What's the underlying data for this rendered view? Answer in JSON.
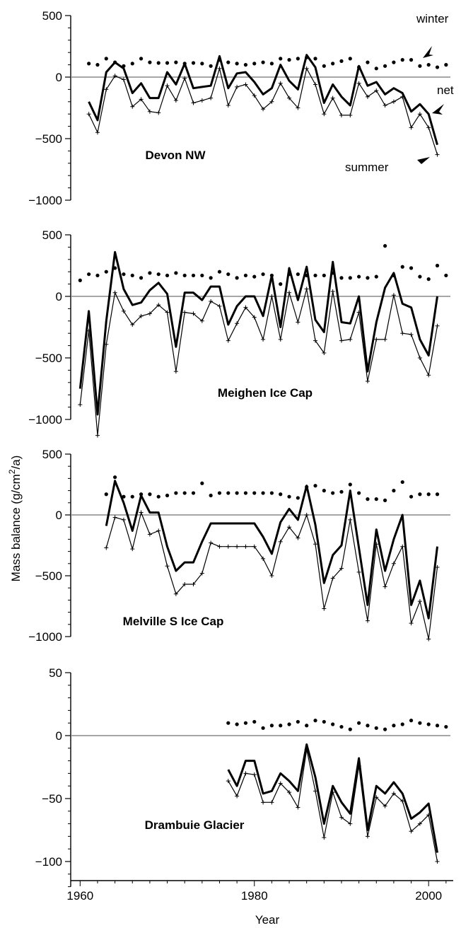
{
  "chart_data": [
    {
      "type": "line",
      "title": "Devon NW",
      "ylim": [
        -1000,
        500
      ],
      "yticks": [
        500,
        0,
        -500,
        -1000
      ],
      "ytick_labels": [
        "500",
        "0",
        "−500",
        "−1000"
      ],
      "annotations": [
        {
          "text": "winter"
        },
        {
          "text": "net"
        },
        {
          "text": "summer"
        }
      ],
      "series": [
        {
          "name": "winter",
          "x": [
            1961,
            1962,
            1963,
            1964,
            1965,
            1966,
            1967,
            1968,
            1969,
            1970,
            1971,
            1972,
            1973,
            1974,
            1975,
            1976,
            1977,
            1978,
            1979,
            1980,
            1981,
            1982,
            1983,
            1984,
            1985,
            1986,
            1987,
            1988,
            1989,
            1990,
            1991,
            1992,
            1993,
            1994,
            1995,
            1996,
            1997,
            1998,
            1999,
            2000,
            2001,
            2002
          ],
          "values": [
            110,
            100,
            150,
            120,
            90,
            110,
            150,
            120,
            115,
            115,
            120,
            110,
            115,
            110,
            90,
            140,
            120,
            110,
            100,
            110,
            120,
            110,
            150,
            140,
            150,
            160,
            150,
            90,
            110,
            130,
            150,
            80,
            120,
            70,
            90,
            120,
            140,
            140,
            90,
            100,
            80,
            100
          ]
        },
        {
          "name": "net",
          "x": [
            1961,
            1962,
            1963,
            1964,
            1965,
            1966,
            1967,
            1968,
            1969,
            1970,
            1971,
            1972,
            1973,
            1974,
            1975,
            1976,
            1977,
            1978,
            1979,
            1980,
            1981,
            1982,
            1983,
            1984,
            1985,
            1986,
            1987,
            1988,
            1989,
            1990,
            1991,
            1992,
            1993,
            1994,
            1995,
            1996,
            1997,
            1998,
            1999,
            2000,
            2001
          ],
          "values": [
            -200,
            -350,
            40,
            120,
            70,
            -130,
            -50,
            -170,
            -170,
            40,
            -60,
            110,
            -90,
            -80,
            -70,
            170,
            -90,
            30,
            40,
            -40,
            -140,
            -90,
            100,
            -30,
            -100,
            180,
            80,
            -210,
            -60,
            -160,
            -230,
            90,
            -70,
            -40,
            -140,
            -90,
            -130,
            -280,
            -220,
            -300,
            -550
          ]
        },
        {
          "name": "summer",
          "x": [
            1961,
            1962,
            1963,
            1964,
            1965,
            1966,
            1967,
            1968,
            1969,
            1970,
            1971,
            1972,
            1973,
            1974,
            1975,
            1976,
            1977,
            1978,
            1979,
            1980,
            1981,
            1982,
            1983,
            1984,
            1985,
            1986,
            1987,
            1988,
            1989,
            1990,
            1991,
            1992,
            1993,
            1994,
            1995,
            1996,
            1997,
            1998,
            1999,
            2000,
            2001
          ],
          "values": [
            -300,
            -450,
            -100,
            10,
            -20,
            -240,
            -180,
            -280,
            -290,
            -70,
            -190,
            -10,
            -210,
            -190,
            -170,
            70,
            -230,
            -80,
            -60,
            -150,
            -260,
            -200,
            -50,
            -170,
            -250,
            70,
            -60,
            -300,
            -170,
            -310,
            -310,
            -50,
            -160,
            -110,
            -230,
            -200,
            -160,
            -410,
            -300,
            -410,
            -630
          ]
        }
      ]
    },
    {
      "type": "line",
      "title": "Meighen Ice Cap",
      "ylim": [
        -1000,
        500
      ],
      "yticks": [
        500,
        0,
        -500,
        -1000
      ],
      "ytick_labels": [
        "500",
        "0",
        "−500",
        "−1000"
      ],
      "series": [
        {
          "name": "winter",
          "x": [
            1960,
            1961,
            1962,
            1963,
            1964,
            1965,
            1966,
            1967,
            1968,
            1969,
            1970,
            1971,
            1972,
            1973,
            1974,
            1975,
            1976,
            1977,
            1978,
            1979,
            1980,
            1981,
            1982,
            1983,
            1984,
            1985,
            1986,
            1987,
            1988,
            1989,
            1990,
            1991,
            1992,
            1993,
            1994,
            1995,
            1996,
            1997,
            1998,
            1999,
            2000,
            2001,
            2002
          ],
          "values": [
            130,
            180,
            170,
            200,
            230,
            180,
            170,
            150,
            190,
            180,
            170,
            190,
            170,
            170,
            170,
            150,
            200,
            180,
            150,
            170,
            160,
            180,
            170,
            100,
            180,
            180,
            170,
            170,
            170,
            190,
            150,
            150,
            160,
            150,
            160,
            410,
            170,
            240,
            230,
            160,
            140,
            250,
            170
          ]
        },
        {
          "name": "net",
          "x": [
            1960,
            1961,
            1962,
            1963,
            1964,
            1965,
            1966,
            1967,
            1968,
            1969,
            1970,
            1971,
            1972,
            1973,
            1974,
            1975,
            1976,
            1977,
            1978,
            1979,
            1980,
            1981,
            1982,
            1983,
            1984,
            1985,
            1986,
            1987,
            1988,
            1989,
            1990,
            1991,
            1992,
            1993,
            1994,
            1995,
            1996,
            1997,
            1998,
            1999,
            2000,
            2001
          ],
          "values": [
            -750,
            -120,
            -960,
            -200,
            360,
            60,
            -70,
            -50,
            50,
            110,
            20,
            -410,
            30,
            30,
            -30,
            80,
            80,
            -230,
            -80,
            0,
            0,
            -160,
            170,
            -250,
            230,
            -30,
            240,
            -190,
            -290,
            280,
            -210,
            -220,
            0,
            -610,
            -210,
            70,
            190,
            -60,
            -90,
            -350,
            -480,
            0
          ]
        },
        {
          "name": "summer",
          "x": [
            1960,
            1961,
            1962,
            1963,
            1964,
            1965,
            1966,
            1967,
            1968,
            1969,
            1970,
            1971,
            1972,
            1973,
            1974,
            1975,
            1976,
            1977,
            1978,
            1979,
            1980,
            1981,
            1982,
            1983,
            1984,
            1985,
            1986,
            1987,
            1988,
            1989,
            1990,
            1991,
            1992,
            1993,
            1994,
            1995,
            1996,
            1997,
            1998,
            1999,
            2000,
            2001
          ],
          "values": [
            -880,
            -280,
            -1130,
            -390,
            30,
            -120,
            -230,
            -160,
            -140,
            -70,
            -130,
            -610,
            -130,
            -140,
            -200,
            -40,
            -80,
            -360,
            -220,
            -90,
            -170,
            -350,
            0,
            -350,
            30,
            -210,
            60,
            -360,
            -460,
            40,
            -360,
            -350,
            -130,
            -690,
            -350,
            -350,
            10,
            -300,
            -310,
            -500,
            -640,
            -240
          ]
        }
      ]
    },
    {
      "type": "line",
      "title": "Melville S Ice Cap",
      "ylim": [
        -1000,
        500
      ],
      "yticks": [
        500,
        0,
        -500,
        -1000
      ],
      "ytick_labels": [
        "500",
        "0",
        "−500",
        "−1000"
      ],
      "series": [
        {
          "name": "winter",
          "x": [
            1963,
            1964,
            1965,
            1966,
            1967,
            1968,
            1969,
            1970,
            1971,
            1972,
            1973,
            1974,
            1975,
            1976,
            1977,
            1978,
            1979,
            1980,
            1981,
            1982,
            1983,
            1984,
            1985,
            1986,
            1987,
            1988,
            1989,
            1990,
            1991,
            1992,
            1993,
            1994,
            1995,
            1996,
            1997,
            1998,
            1999,
            2000,
            2001
          ],
          "values": [
            170,
            310,
            150,
            150,
            170,
            170,
            150,
            160,
            180,
            180,
            180,
            260,
            160,
            180,
            180,
            180,
            180,
            180,
            180,
            180,
            170,
            150,
            140,
            230,
            240,
            200,
            180,
            190,
            250,
            180,
            130,
            130,
            120,
            200,
            270,
            150,
            170,
            170,
            170
          ]
        },
        {
          "name": "net",
          "x": [
            1963,
            1964,
            1965,
            1966,
            1967,
            1968,
            1969,
            1970,
            1971,
            1972,
            1973,
            1974,
            1975,
            1976,
            1977,
            1978,
            1979,
            1980,
            1981,
            1982,
            1983,
            1984,
            1985,
            1986,
            1987,
            1988,
            1989,
            1990,
            1991,
            1992,
            1993,
            1994,
            1995,
            1996,
            1997,
            1998,
            1999,
            2000,
            2001
          ],
          "values": [
            -90,
            280,
            100,
            -130,
            160,
            20,
            20,
            -260,
            -460,
            -390,
            -390,
            -220,
            -70,
            -70,
            -70,
            -70,
            -70,
            -70,
            -180,
            -320,
            -60,
            50,
            -40,
            240,
            -80,
            -560,
            -330,
            -250,
            200,
            -270,
            -740,
            -120,
            -460,
            -200,
            0,
            -740,
            -540,
            -850,
            -260
          ]
        },
        {
          "name": "summer",
          "x": [
            1963,
            1964,
            1965,
            1966,
            1967,
            1968,
            1969,
            1970,
            1971,
            1972,
            1973,
            1974,
            1975,
            1976,
            1977,
            1978,
            1979,
            1980,
            1981,
            1982,
            1983,
            1984,
            1985,
            1986,
            1987,
            1988,
            1989,
            1990,
            1991,
            1992,
            1993,
            1994,
            1995,
            1996,
            1997,
            1998,
            1999,
            2000,
            2001
          ],
          "values": [
            -270,
            -20,
            -40,
            -280,
            20,
            -160,
            -130,
            -420,
            -650,
            -570,
            -570,
            -480,
            -230,
            -260,
            -260,
            -260,
            -260,
            -260,
            -360,
            -500,
            -220,
            -100,
            -190,
            0,
            -240,
            -770,
            -520,
            -440,
            -40,
            -470,
            -870,
            -240,
            -590,
            -400,
            -260,
            -890,
            -710,
            -1020,
            -430
          ]
        }
      ]
    },
    {
      "type": "line",
      "title": "Drambuie Glacier",
      "ylim": [
        -120,
        50
      ],
      "yticks": [
        50,
        0,
        -50,
        -100
      ],
      "ytick_labels": [
        "50",
        "0",
        "−50",
        "−100"
      ],
      "series": [
        {
          "name": "winter",
          "x": [
            1977,
            1978,
            1979,
            1980,
            1981,
            1982,
            1983,
            1984,
            1985,
            1986,
            1987,
            1988,
            1989,
            1990,
            1991,
            1992,
            1993,
            1994,
            1995,
            1996,
            1997,
            1998,
            1999,
            2000,
            2001,
            2002
          ],
          "values": [
            10,
            9,
            10,
            11,
            6,
            8,
            8,
            9,
            11,
            8,
            12,
            11,
            9,
            7,
            5,
            10,
            8,
            6,
            5,
            8,
            9,
            12,
            10,
            9,
            8,
            7
          ]
        },
        {
          "name": "net",
          "x": [
            1977,
            1978,
            1979,
            1980,
            1981,
            1982,
            1983,
            1984,
            1985,
            1986,
            1987,
            1988,
            1989,
            1990,
            1991,
            1992,
            1993,
            1994,
            1995,
            1996,
            1997,
            1998,
            1999,
            2000,
            2001
          ],
          "values": [
            -27,
            -40,
            -20,
            -20,
            -46,
            -44,
            -30,
            -36,
            -44,
            -7,
            -33,
            -70,
            -40,
            -53,
            -62,
            -18,
            -75,
            -40,
            -46,
            -37,
            -46,
            -66,
            -61,
            -54,
            -93
          ]
        },
        {
          "name": "summer",
          "x": [
            1977,
            1978,
            1979,
            1980,
            1981,
            1982,
            1983,
            1984,
            1985,
            1986,
            1987,
            1988,
            1989,
            1990,
            1991,
            1992,
            1993,
            1994,
            1995,
            1996,
            1997,
            1998,
            1999,
            2000,
            2001
          ],
          "values": [
            -36,
            -48,
            -30,
            -31,
            -53,
            -53,
            -38,
            -45,
            -57,
            -11,
            -44,
            -81,
            -45,
            -65,
            -70,
            -24,
            -80,
            -49,
            -56,
            -46,
            -52,
            -76,
            -70,
            -63,
            -100
          ]
        }
      ]
    }
  ],
  "x_axis": {
    "label": "Year",
    "range": [
      1959,
      2002.5
    ],
    "ticks": [
      1960,
      1980,
      2000
    ],
    "tick_labels": [
      "1960",
      "1980",
      "2000"
    ]
  },
  "y_axis": {
    "label_prefix": "Mass balance (g/cm",
    "label_sup": "2",
    "label_suffix": "/a)"
  }
}
